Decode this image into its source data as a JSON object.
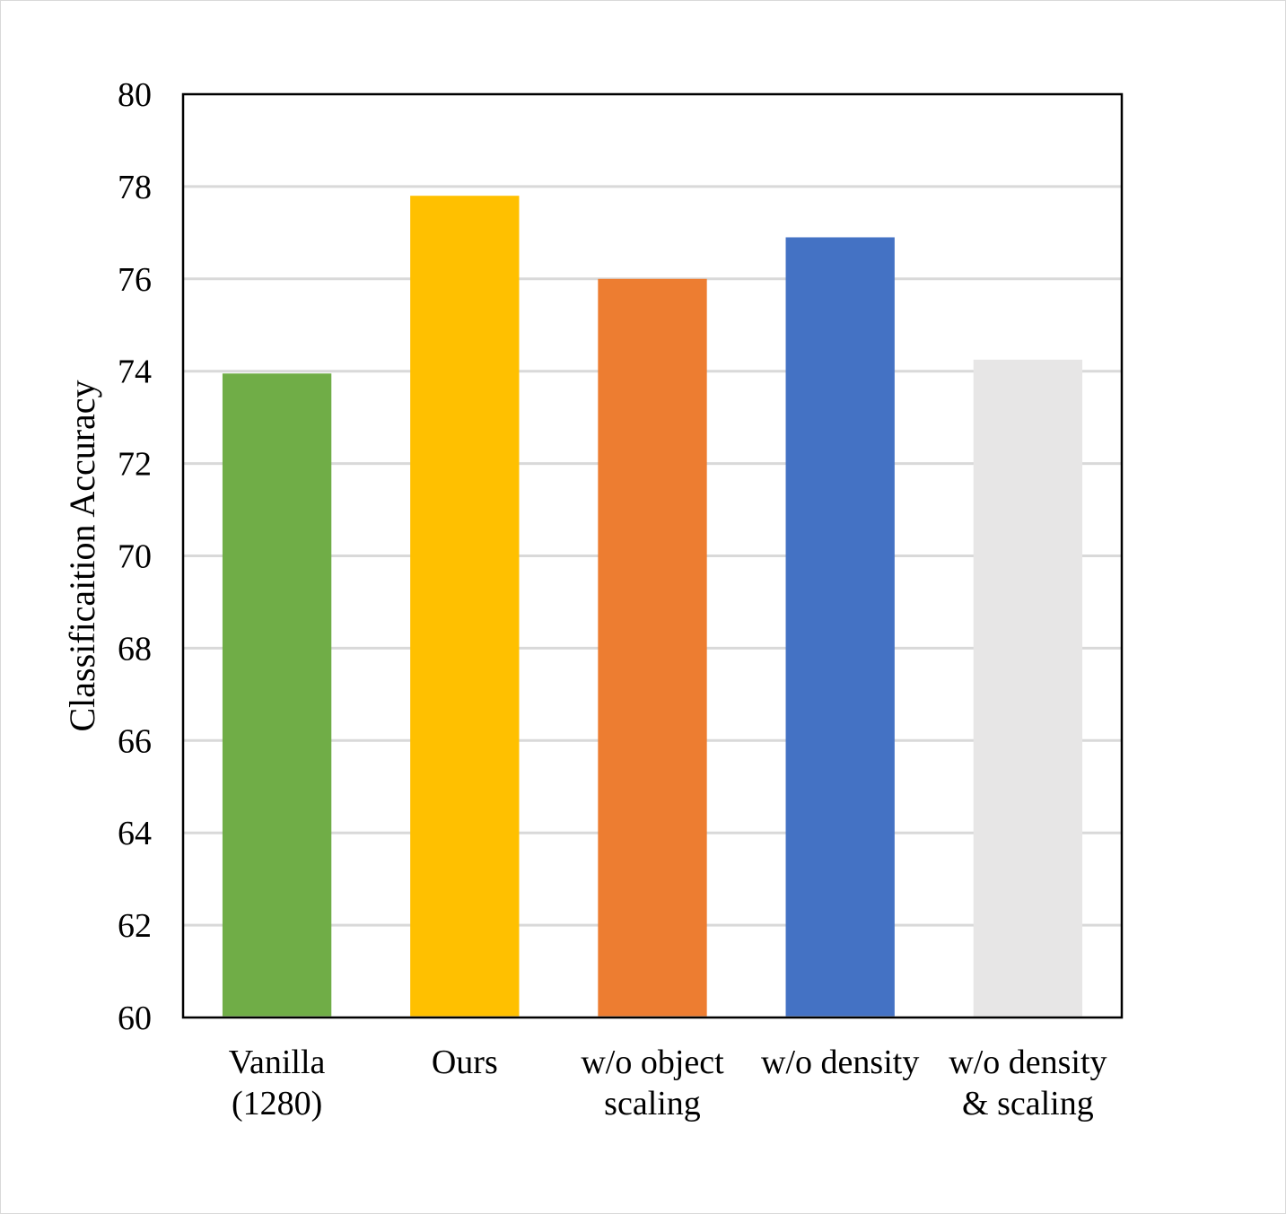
{
  "chart_data": {
    "type": "bar",
    "title": "",
    "xlabel": "",
    "ylabel": "Classificaition Accuracy",
    "ylim": [
      60,
      80
    ],
    "yticks": [
      60,
      62,
      64,
      66,
      68,
      70,
      72,
      74,
      76,
      78,
      80
    ],
    "grid": true,
    "legend": "none",
    "categories": [
      [
        "Vanilla",
        "(1280)"
      ],
      [
        "Ours"
      ],
      [
        "w/o object",
        "scaling"
      ],
      [
        "w/o density"
      ],
      [
        "w/o density",
        "& scaling"
      ]
    ],
    "values": [
      73.95,
      77.8,
      76.0,
      76.9,
      74.25
    ],
    "colors": [
      "#70ad47",
      "#ffc000",
      "#ed7d31",
      "#4472c4",
      "#e7e6e6"
    ],
    "gridline_color": "#d9d9d9",
    "axis_color": "#000000"
  }
}
